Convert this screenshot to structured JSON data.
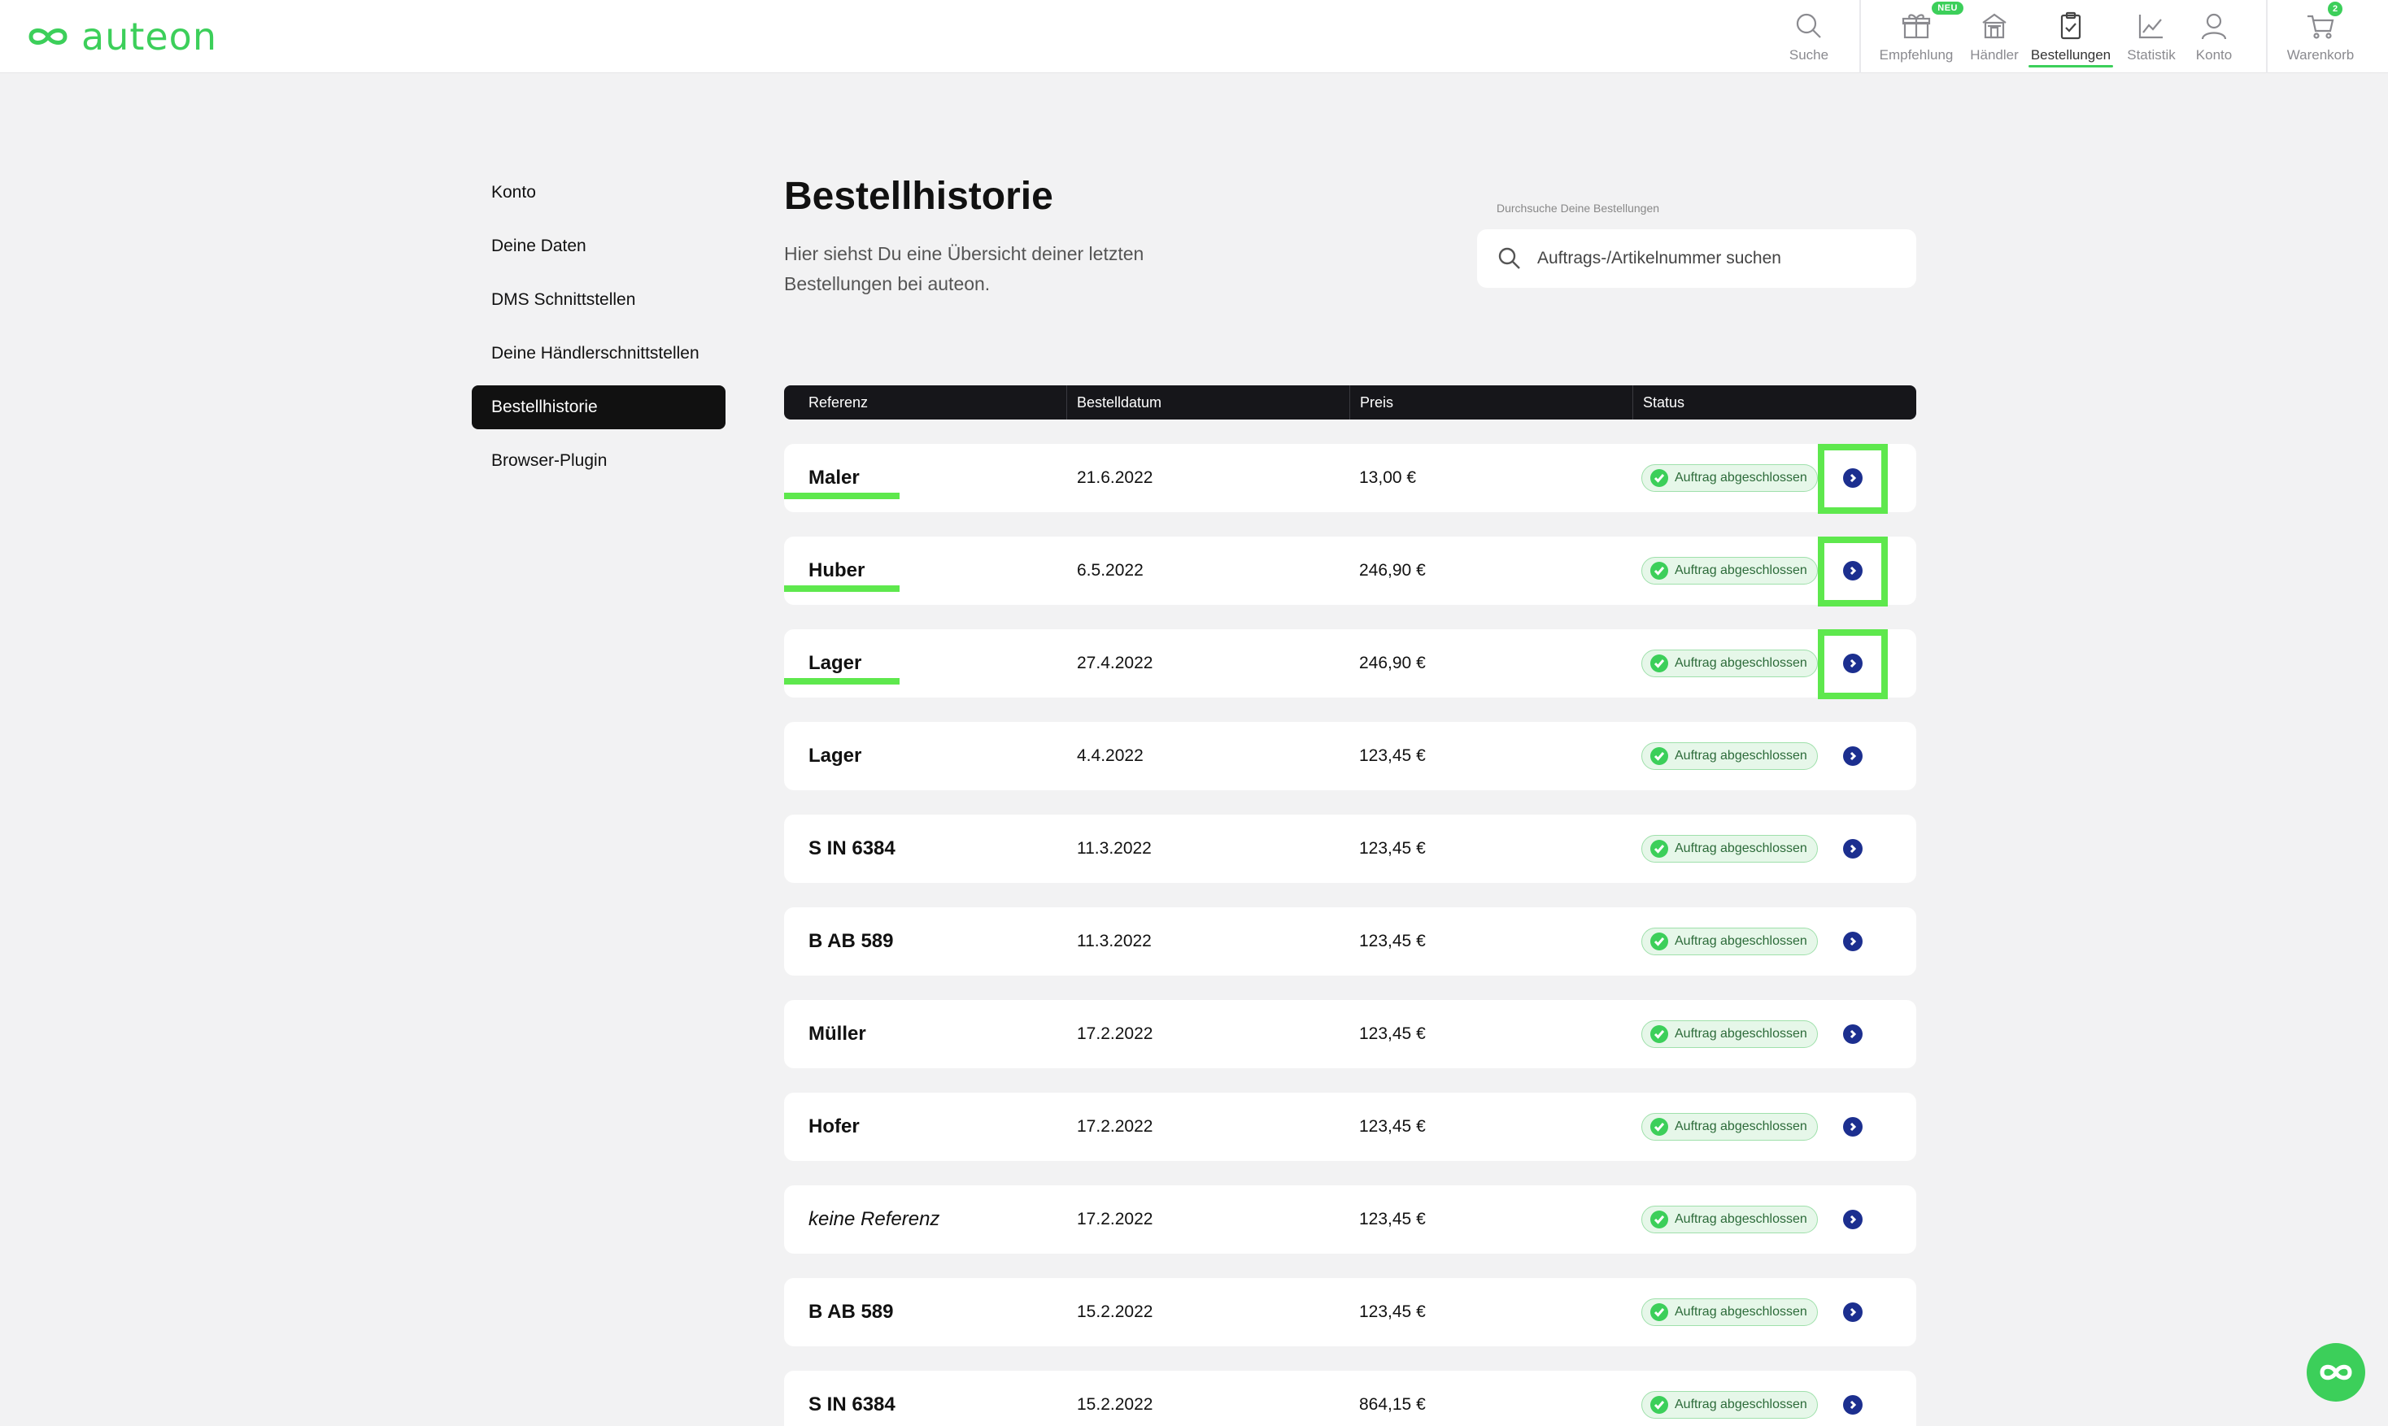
{
  "app": {
    "logo_text": "auteon",
    "accent_color": "#3ccf5a",
    "highlight_color": "#5ee84d"
  },
  "nav": {
    "search": {
      "label": "Suche",
      "icon": "search-icon"
    },
    "recommend": {
      "label": "Empfehlung",
      "icon": "gift-icon",
      "badge": "NEU"
    },
    "dealer": {
      "label": "Händler",
      "icon": "store-icon"
    },
    "orders": {
      "label": "Bestellungen",
      "icon": "clipboard-check-icon",
      "active": true
    },
    "stats": {
      "label": "Statistik",
      "icon": "chart-line-icon"
    },
    "account": {
      "label": "Konto",
      "icon": "user-icon"
    },
    "cart": {
      "label": "Warenkorb",
      "icon": "cart-icon",
      "count": "2"
    }
  },
  "sidebar": {
    "items": [
      {
        "label": "Konto"
      },
      {
        "label": "Deine Daten"
      },
      {
        "label": "DMS Schnittstellen"
      },
      {
        "label": "Deine Händlerschnittstellen"
      },
      {
        "label": "Bestellhistorie",
        "active": true
      },
      {
        "label": "Browser-Plugin"
      }
    ]
  },
  "main": {
    "title": "Bestellhistorie",
    "description": "Hier siehst Du eine Übersicht deiner letzten Bestellungen bei auteon.",
    "search": {
      "label": "Durchsuche Deine Bestellungen",
      "placeholder": "Auftrags-/Artikelnummer suchen"
    },
    "table": {
      "columns": [
        "Referenz",
        "Bestelldatum",
        "Preis",
        "Status"
      ],
      "rows": [
        {
          "ref": "Maler",
          "date": "21.6.2022",
          "price": "13,00 €",
          "status": "Auftrag abgeschlossen",
          "highlighted": true
        },
        {
          "ref": "Huber",
          "date": "6.5.2022",
          "price": "246,90 €",
          "status": "Auftrag abgeschlossen",
          "highlighted": true
        },
        {
          "ref": "Lager",
          "date": "27.4.2022",
          "price": "246,90 €",
          "status": "Auftrag abgeschlossen",
          "highlighted": true
        },
        {
          "ref": "Lager",
          "date": "4.4.2022",
          "price": "123,45 €",
          "status": "Auftrag abgeschlossen"
        },
        {
          "ref": "S IN 6384",
          "date": "11.3.2022",
          "price": "123,45 €",
          "status": "Auftrag abgeschlossen"
        },
        {
          "ref": "B AB 589",
          "date": "11.3.2022",
          "price": "123,45 €",
          "status": "Auftrag abgeschlossen"
        },
        {
          "ref": "Müller",
          "date": "17.2.2022",
          "price": "123,45 €",
          "status": "Auftrag abgeschlossen"
        },
        {
          "ref": "Hofer",
          "date": "17.2.2022",
          "price": "123,45 €",
          "status": "Auftrag abgeschlossen"
        },
        {
          "ref": "keine Referenz",
          "date": "17.2.2022",
          "price": "123,45 €",
          "status": "Auftrag abgeschlossen",
          "placeholder_ref": true
        },
        {
          "ref": "B AB 589",
          "date": "15.2.2022",
          "price": "123,45 €",
          "status": "Auftrag abgeschlossen"
        },
        {
          "ref": "S IN 6384",
          "date": "15.2.2022",
          "price": "864,15 €",
          "status": "Auftrag abgeschlossen"
        }
      ]
    }
  },
  "chat_button": {
    "icon": "auteon-chat-icon"
  }
}
